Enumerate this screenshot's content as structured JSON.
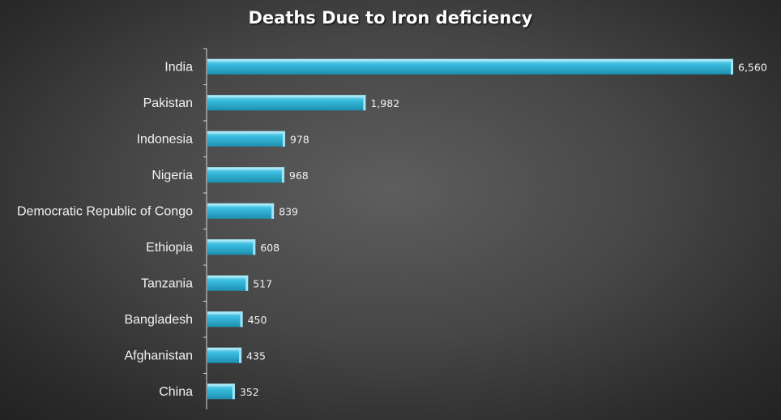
{
  "chart_data": {
    "type": "bar",
    "orientation": "horizontal",
    "title": "Deaths Due to Iron deficiency",
    "categories": [
      "India",
      "Pakistan",
      "Indonesia",
      "Nigeria",
      "Democratic Republic of Congo",
      "Ethiopia",
      "Tanzania",
      "Bangladesh",
      "Afghanistan",
      "China"
    ],
    "values": [
      6560,
      1982,
      978,
      968,
      839,
      608,
      517,
      450,
      435,
      352
    ],
    "value_labels": [
      "6,560",
      "1,982",
      "978",
      "968",
      "839",
      "608",
      "517",
      "450",
      "435",
      "352"
    ],
    "xlabel": "",
    "ylabel": "",
    "grid": false,
    "legend": "none",
    "colors": {
      "bar_top": "#8fe3f7",
      "bar_mid": "#39bcdf",
      "bar_bottom": "#1d8fae",
      "bar_end_cap": "#9fe7f8",
      "axis": "#d9d9d9",
      "text": "#f2f2f2"
    }
  }
}
